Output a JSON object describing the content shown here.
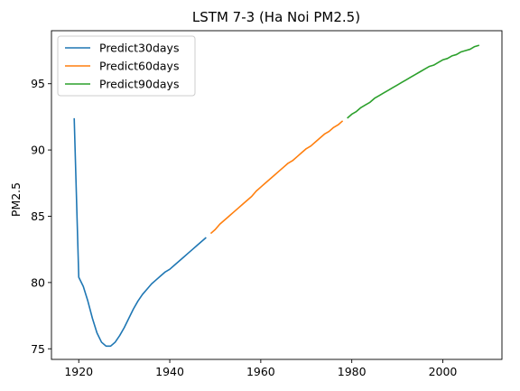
{
  "chart_data": {
    "type": "line",
    "title": "LSTM 7-3 (Ha Noi PM2.5)",
    "xlabel": "",
    "ylabel": "PM2.5",
    "xlim": [
      1914,
      2013
    ],
    "ylim": [
      74.2,
      99.0
    ],
    "xticks": [
      1920,
      1940,
      1960,
      1980,
      2000
    ],
    "yticks": [
      75,
      80,
      85,
      90,
      95
    ],
    "grid": false,
    "legend_position": "top-left",
    "series": [
      {
        "name": "Predict30days",
        "color": "#1f77b4",
        "x": [
          1919,
          1920,
          1921,
          1922,
          1923,
          1924,
          1925,
          1926,
          1927,
          1928,
          1929,
          1930,
          1931,
          1932,
          1933,
          1934,
          1935,
          1936,
          1937,
          1938,
          1939,
          1940,
          1941,
          1942,
          1943,
          1944,
          1945,
          1946,
          1947,
          1948
        ],
        "y": [
          92.4,
          80.4,
          79.7,
          78.6,
          77.3,
          76.2,
          75.5,
          75.2,
          75.2,
          75.5,
          76.0,
          76.6,
          77.3,
          78.0,
          78.6,
          79.1,
          79.5,
          79.9,
          80.2,
          80.5,
          80.8,
          81.0,
          81.3,
          81.6,
          81.9,
          82.2,
          82.5,
          82.8,
          83.1,
          83.4
        ]
      },
      {
        "name": "Predict60days",
        "color": "#ff7f0e",
        "x": [
          1949,
          1950,
          1951,
          1952,
          1953,
          1954,
          1955,
          1956,
          1957,
          1958,
          1959,
          1960,
          1961,
          1962,
          1963,
          1964,
          1965,
          1966,
          1967,
          1968,
          1969,
          1970,
          1971,
          1972,
          1973,
          1974,
          1975,
          1976,
          1977,
          1978
        ],
        "y": [
          83.7,
          84.0,
          84.4,
          84.7,
          85.0,
          85.3,
          85.6,
          85.9,
          86.2,
          86.5,
          86.9,
          87.2,
          87.5,
          87.8,
          88.1,
          88.4,
          88.7,
          89.0,
          89.2,
          89.5,
          89.8,
          90.1,
          90.3,
          90.6,
          90.9,
          91.2,
          91.4,
          91.7,
          91.9,
          92.2
        ]
      },
      {
        "name": "Predict90days",
        "color": "#2ca02c",
        "x": [
          1979,
          1980,
          1981,
          1982,
          1983,
          1984,
          1985,
          1986,
          1987,
          1988,
          1989,
          1990,
          1991,
          1992,
          1993,
          1994,
          1995,
          1996,
          1997,
          1998,
          1999,
          2000,
          2001,
          2002,
          2003,
          2004,
          2005,
          2006,
          2007,
          2008
        ],
        "y": [
          92.4,
          92.7,
          92.9,
          93.2,
          93.4,
          93.6,
          93.9,
          94.1,
          94.3,
          94.5,
          94.7,
          94.9,
          95.1,
          95.3,
          95.5,
          95.7,
          95.9,
          96.1,
          96.3,
          96.4,
          96.6,
          96.8,
          96.9,
          97.1,
          97.2,
          97.4,
          97.5,
          97.6,
          97.8,
          97.9
        ]
      }
    ]
  }
}
